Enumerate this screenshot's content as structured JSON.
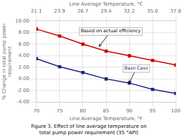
{
  "chart_data": {
    "type": "line",
    "caption": [
      "Figure 3. Effect of line average temperature on",
      "total pump power requirement (35 °API)"
    ],
    "xlabel": "Line Average Temperature, °F",
    "x2label": "Line Average Temperature, °C",
    "ylabel": "% Change in total pump power\nrequirement",
    "x": [
      70,
      75,
      80,
      85,
      90,
      95,
      100
    ],
    "series": [
      {
        "color": "#cc0000",
        "marker": "square",
        "values": [
          8.6,
          7.4,
          6.0,
          4.8,
          4.0,
          3.2,
          2.4
        ]
      },
      {
        "color": "#1a237e",
        "marker": "square",
        "values": [
          3.5,
          2.1,
          1.1,
          0.0,
          -0.7,
          -1.8,
          -2.5
        ]
      }
    ],
    "xlim": [
      70,
      100
    ],
    "xticks": [
      70,
      75,
      80,
      85,
      90,
      95,
      100
    ],
    "x2lim": [
      70,
      100
    ],
    "x2ticks": [
      {
        "value": 70,
        "label": "21.1"
      },
      {
        "value": 75,
        "label": "23.9"
      },
      {
        "value": 80,
        "label": "26.7"
      },
      {
        "value": 85,
        "label": "29.4"
      },
      {
        "value": 90,
        "label": "32.2"
      },
      {
        "value": 95,
        "label": "35.0"
      },
      {
        "value": 100,
        "label": "37.8"
      }
    ],
    "ylim": [
      -4.0,
      10.0
    ],
    "yticks": [
      {
        "value": -4,
        "label": "-4.00"
      },
      {
        "value": -2,
        "label": "-2.00"
      },
      {
        "value": 0,
        "label": "0.00"
      },
      {
        "value": 2,
        "label": "2.00"
      },
      {
        "value": 4,
        "label": "4.00"
      },
      {
        "value": 6,
        "label": "6.00"
      },
      {
        "value": 8,
        "label": "8.00"
      },
      {
        "value": 10,
        "label": "10.00"
      }
    ],
    "grid": true,
    "annotations": [
      {
        "text": "Based on actual efficiency",
        "x": 83.5,
        "y": 5.6,
        "text_x": 86,
        "text_y": 8.2,
        "color": "#000000"
      },
      {
        "text": "Base Case",
        "x": 90,
        "y": -0.65,
        "text_x": 91.5,
        "text_y": 1.8,
        "color": "#1a237e"
      }
    ]
  }
}
